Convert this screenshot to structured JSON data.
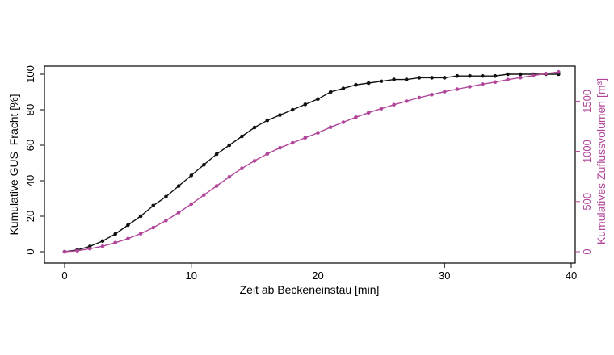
{
  "chart_data": {
    "type": "line",
    "xlabel": "Zeit ab Beckeneinstau [min]",
    "ylabel_left": "Kumulative GUS–Fracht [%]",
    "ylabel_right": "Kumulatives Zuflussvolumen [m³]",
    "xlim": [
      0,
      40
    ],
    "ylim_left": [
      0,
      100
    ],
    "ylim_right": [
      0,
      1800
    ],
    "xticks": [
      "0",
      "10",
      "20",
      "30",
      "40"
    ],
    "yticks_left": [
      "0",
      "20",
      "40",
      "60",
      "80",
      "100"
    ],
    "yticks_right": [
      "0",
      "500",
      "1000",
      "1500"
    ],
    "grid": false,
    "colors": {
      "left_series": "#111111",
      "right_series": "#b0459a"
    },
    "series": [
      {
        "axis": "left",
        "x": [
          0,
          1,
          2,
          3,
          4,
          5,
          6,
          7,
          8,
          9,
          10,
          11,
          12,
          13,
          14,
          15,
          16,
          17,
          18,
          19,
          20,
          21,
          22,
          23,
          24,
          25,
          26,
          27,
          28,
          29,
          30,
          31,
          32,
          33,
          34,
          35,
          36,
          37,
          38,
          39
        ],
        "values": [
          0,
          1,
          3,
          6,
          10,
          15,
          20,
          26,
          31,
          37,
          43,
          49,
          55,
          60,
          65,
          70,
          74,
          77,
          80,
          83,
          86,
          90,
          92,
          94,
          95,
          96,
          97,
          97,
          98,
          98,
          98,
          99,
          99,
          99,
          99,
          100,
          100,
          100,
          100,
          100
        ]
      },
      {
        "axis": "right",
        "x": [
          0,
          1,
          2,
          3,
          4,
          5,
          6,
          7,
          8,
          9,
          10,
          11,
          12,
          13,
          14,
          15,
          16,
          17,
          18,
          19,
          20,
          21,
          22,
          23,
          24,
          25,
          26,
          27,
          28,
          29,
          30,
          31,
          32,
          33,
          34,
          35,
          36,
          37,
          38,
          39
        ],
        "values": [
          0,
          10,
          30,
          55,
          90,
          130,
          180,
          240,
          310,
          390,
          475,
          565,
          655,
          745,
          830,
          905,
          975,
          1035,
          1085,
          1135,
          1185,
          1240,
          1290,
          1340,
          1385,
          1425,
          1465,
          1500,
          1535,
          1565,
          1595,
          1620,
          1645,
          1670,
          1690,
          1715,
          1735,
          1755,
          1775,
          1790
        ]
      }
    ]
  }
}
